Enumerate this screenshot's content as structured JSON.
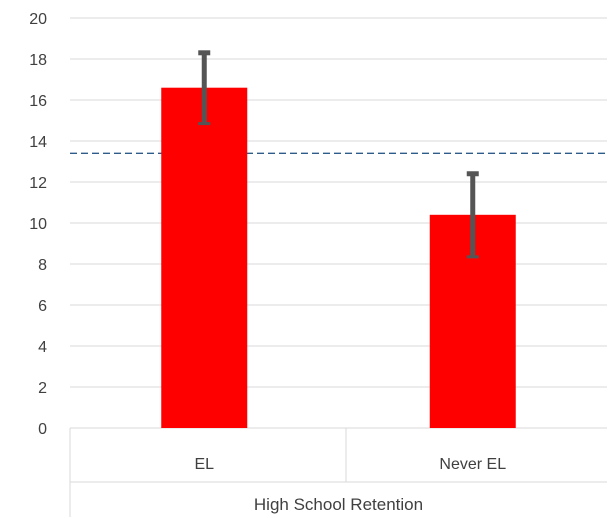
{
  "chart_data": {
    "type": "bar",
    "title": "",
    "xlabel": "",
    "ylabel": "",
    "group_label": "High School Retention",
    "categories": [
      "EL",
      "Never EL"
    ],
    "series": [
      {
        "values": [
          16.6,
          10.4
        ],
        "error_low": [
          14.8,
          8.3
        ],
        "error_high": [
          18.4,
          12.5
        ],
        "color": "#ff0000"
      }
    ],
    "reference_line": {
      "value": 13.4,
      "style": "dashed",
      "color": "#2e5c8a"
    },
    "ylim": [
      0,
      20
    ],
    "yticks": [
      "0",
      "2",
      "4",
      "6",
      "8",
      "10",
      "12",
      "14",
      "16",
      "18",
      "20"
    ],
    "grid": true,
    "error_bar_color": "#555555",
    "legend": "none"
  }
}
